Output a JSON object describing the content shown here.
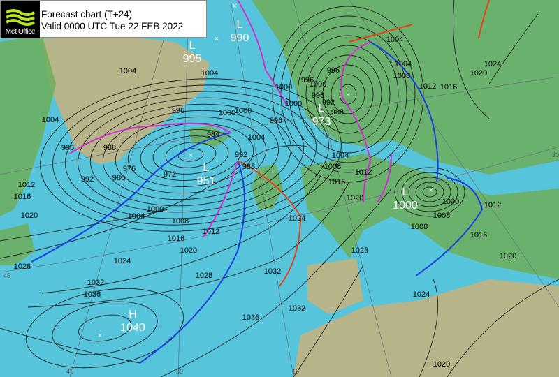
{
  "header": {
    "logo_text": "Met Office",
    "title": "Forecast chart (T+24)",
    "valid": "Valid 0000 UTC Tue 22 FEB 2022"
  },
  "colors": {
    "ocean": "#56c4db",
    "land_low": "#6fae5a",
    "land_high": "#c8b27a",
    "isobar": "#222222",
    "cold_front": "#1a3fe0",
    "warm_front": "#e0441a",
    "occluded_front": "#d030d0"
  },
  "pressure_centers": [
    {
      "type": "L",
      "value": "990"
    },
    {
      "type": "L",
      "value": "995"
    },
    {
      "type": "L",
      "value": "973"
    },
    {
      "type": "L",
      "value": "951"
    },
    {
      "type": "L",
      "value": "1000"
    },
    {
      "type": "H",
      "value": "1040"
    }
  ],
  "isobar_labels": [
    "1004",
    "1004",
    "1000",
    "996",
    "1004",
    "1000",
    "996",
    "984",
    "1000",
    "1004",
    "996",
    "992",
    "988",
    "976",
    "980",
    "972",
    "992",
    "988",
    "1000",
    "1004",
    "1008",
    "1012",
    "1016",
    "1020",
    "1024",
    "1028",
    "1032",
    "1036",
    "1036",
    "1032",
    "1028",
    "1024",
    "1016",
    "1020",
    "1012",
    "1008",
    "1004",
    "1000",
    "1004",
    "1008",
    "1012",
    "1016",
    "1020",
    "1024",
    "1028",
    "1032",
    "996",
    "1004",
    "1008",
    "1012",
    "1016",
    "1020",
    "1008",
    "1012",
    "1016",
    "1020",
    "1024",
    "1020",
    "1000",
    "996",
    "992",
    "988",
    "996",
    "1000"
  ],
  "grid_labels": [
    "45",
    "30",
    "15",
    "30",
    "45"
  ]
}
